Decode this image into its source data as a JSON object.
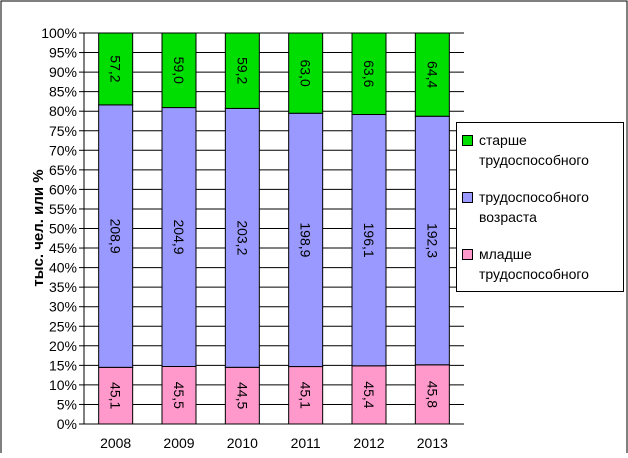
{
  "chart_data": {
    "type": "bar",
    "stacked": "percent",
    "categories": [
      "2008",
      "2009",
      "2010",
      "2011",
      "2012",
      "2013"
    ],
    "series": [
      {
        "name": "младше трудоспособного",
        "color": "#ff99cc",
        "values": [
          45.1,
          45.5,
          44.5,
          45.1,
          45.4,
          45.8
        ],
        "labels": [
          "45,1",
          "45,5",
          "44,5",
          "45,1",
          "45,4",
          "45,8"
        ]
      },
      {
        "name": "трудоспособного возраста",
        "color": "#9999ff",
        "values": [
          208.9,
          204.9,
          203.2,
          198.9,
          196.1,
          192.3
        ],
        "labels": [
          "208,9",
          "204,9",
          "203,2",
          "198,9",
          "196,1",
          "192,3"
        ]
      },
      {
        "name": "старше трудоспособного",
        "color": "#00dd00",
        "values": [
          57.2,
          59.0,
          59.2,
          63.0,
          63.6,
          64.4
        ],
        "labels": [
          "57,2",
          "59,0",
          "59,2",
          "63,0",
          "63,6",
          "64,4"
        ]
      }
    ],
    "legend_order": [
      2,
      1,
      0
    ],
    "legend_lines": [
      [
        "старше",
        "трудоспособного"
      ],
      [
        "трудоспособного",
        "возраста"
      ],
      [
        "младше",
        "трудоспособного"
      ]
    ],
    "ylabel": "тыс. чел. или  %",
    "ylim": [
      0,
      100
    ],
    "yticks": [
      "0%",
      "5%",
      "10%",
      "15%",
      "20%",
      "25%",
      "30%",
      "35%",
      "40%",
      "45%",
      "50%",
      "55%",
      "60%",
      "65%",
      "70%",
      "75%",
      "80%",
      "85%",
      "90%",
      "95%",
      "100%"
    ],
    "grid": true,
    "legend_position": "right"
  }
}
